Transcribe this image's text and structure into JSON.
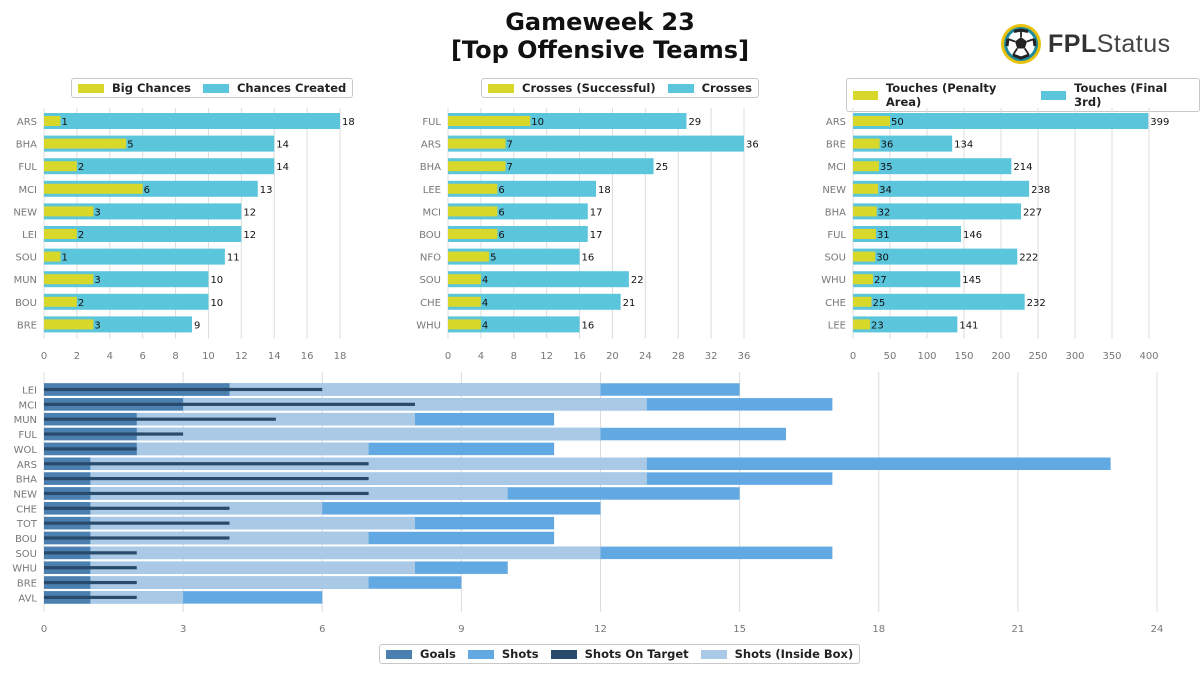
{
  "header": {
    "title_line1": "Gameweek 23",
    "title_line2": "[Top Offensive Teams]",
    "logo_bold": "FPL",
    "logo_light": "Status"
  },
  "colors": {
    "yellow": "#d8d82a",
    "cyan": "#5bc5dc",
    "goals": "#4a7fb0",
    "shots": "#62a8e2",
    "shots_on_target": "#2a4a6c",
    "shots_inside_box": "#a9c9e6",
    "grid": "#dcdcdc",
    "tick": "#777777"
  },
  "chart_data": [
    {
      "id": "c1",
      "type": "bar",
      "orientation": "horizontal",
      "legend": [
        "Big Chances",
        "Chances Created"
      ],
      "categories": [
        "ARS",
        "BHA",
        "FUL",
        "MCI",
        "NEW",
        "LEI",
        "SOU",
        "MUN",
        "BOU",
        "BRE"
      ],
      "series": [
        {
          "name": "Chances Created",
          "values": [
            18,
            14,
            14,
            13,
            12,
            12,
            11,
            10,
            10,
            9
          ]
        },
        {
          "name": "Big Chances",
          "values": [
            1,
            5,
            2,
            6,
            3,
            2,
            1,
            3,
            2,
            3
          ]
        }
      ],
      "xlim": [
        0,
        18
      ],
      "xticks": [
        0,
        2,
        4,
        6,
        8,
        10,
        12,
        14,
        16,
        18
      ]
    },
    {
      "id": "c2",
      "type": "bar",
      "orientation": "horizontal",
      "legend": [
        "Crosses (Successful)",
        "Crosses"
      ],
      "categories": [
        "FUL",
        "ARS",
        "BHA",
        "LEE",
        "MCI",
        "BOU",
        "NFO",
        "SOU",
        "CHE",
        "WHU"
      ],
      "series": [
        {
          "name": "Crosses",
          "values": [
            29,
            36,
            25,
            18,
            17,
            17,
            16,
            22,
            21,
            16
          ]
        },
        {
          "name": "Crosses (Successful)",
          "values": [
            10,
            7,
            7,
            6,
            6,
            6,
            5,
            4,
            4,
            4
          ]
        }
      ],
      "xlim": [
        0,
        36
      ],
      "xticks": [
        0,
        4,
        8,
        12,
        16,
        20,
        24,
        28,
        32,
        36
      ]
    },
    {
      "id": "c3",
      "type": "bar",
      "orientation": "horizontal",
      "legend": [
        "Touches (Penalty Area)",
        "Touches (Final 3rd)"
      ],
      "categories": [
        "ARS",
        "BRE",
        "MCI",
        "NEW",
        "BHA",
        "FUL",
        "SOU",
        "WHU",
        "CHE",
        "LEE"
      ],
      "series": [
        {
          "name": "Touches (Final 3rd)",
          "values": [
            399,
            134,
            214,
            238,
            227,
            146,
            222,
            145,
            232,
            141
          ]
        },
        {
          "name": "Touches (Penalty Area)",
          "values": [
            50,
            36,
            35,
            34,
            32,
            31,
            30,
            27,
            25,
            23
          ]
        }
      ],
      "xlim": [
        0,
        400
      ],
      "xticks": [
        0,
        50,
        100,
        150,
        200,
        250,
        300,
        350,
        400
      ]
    },
    {
      "id": "c4",
      "type": "bar",
      "orientation": "horizontal",
      "stacked_overlay": true,
      "legend": [
        "Goals",
        "Shots",
        "Shots On Target",
        "Shots (Inside Box)"
      ],
      "categories": [
        "LEI",
        "MCI",
        "MUN",
        "FUL",
        "WOL",
        "ARS",
        "BHA",
        "NEW",
        "CHE",
        "TOT",
        "BOU",
        "SOU",
        "WHU",
        "BRE",
        "AVL"
      ],
      "series": [
        {
          "name": "Shots",
          "values": [
            15,
            17,
            11,
            16,
            11,
            23,
            17,
            15,
            12,
            11,
            11,
            17,
            10,
            9,
            6
          ]
        },
        {
          "name": "Shots (Inside Box)",
          "values": [
            12,
            13,
            8,
            12,
            7,
            13,
            13,
            10,
            6,
            8,
            7,
            12,
            8,
            7,
            3
          ]
        },
        {
          "name": "Goals",
          "values": [
            4,
            3,
            2,
            2,
            2,
            1,
            1,
            1,
            1,
            1,
            1,
            1,
            1,
            1,
            1
          ]
        },
        {
          "name": "Shots On Target",
          "values": [
            6,
            8,
            5,
            3,
            2,
            7,
            7,
            7,
            4,
            4,
            4,
            2,
            2,
            2,
            2
          ]
        }
      ],
      "xlim": [
        0,
        24
      ],
      "xticks": [
        0,
        3,
        6,
        9,
        12,
        15,
        18,
        21,
        24
      ]
    }
  ]
}
